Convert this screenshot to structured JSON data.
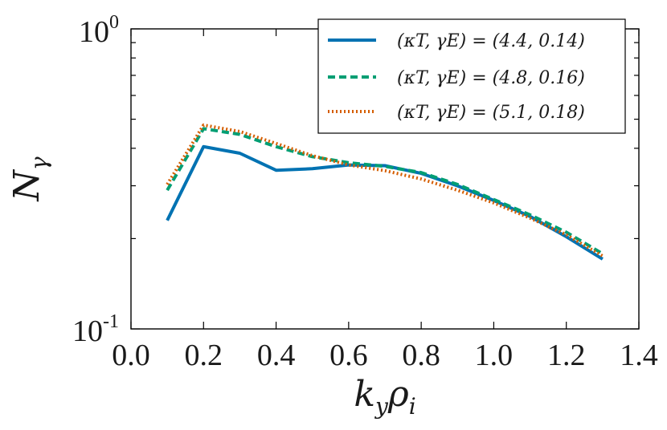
{
  "chart_data": {
    "type": "line",
    "xscale": "linear",
    "yscale": "log",
    "xlim": [
      0.0,
      1.4
    ],
    "ylim": [
      0.1,
      1.0
    ],
    "xlabel": "k_y ρ_i",
    "ylabel": "N_γ",
    "xticks": [
      "0.0",
      "0.2",
      "0.4",
      "0.6",
      "0.8",
      "1.0",
      "1.2",
      "1.4"
    ],
    "yticks": [
      {
        "base": "10",
        "exp": "-1",
        "value": 0.1
      },
      {
        "base": "10",
        "exp": "0",
        "value": 1.0
      }
    ],
    "legend_position": "top-right",
    "x": [
      0.1,
      0.2,
      0.3,
      0.4,
      0.5,
      0.6,
      0.7,
      0.8,
      0.9,
      1.0,
      1.1,
      1.2,
      1.3
    ],
    "series": [
      {
        "name": "(κ_T, γ_E) = (4.4, 0.14)",
        "label_text": "(κT, γE) = (4.4, 0.14)",
        "color": "#0072b2",
        "style": "solid",
        "values": [
          0.23,
          0.405,
          0.385,
          0.338,
          0.342,
          0.352,
          0.35,
          0.33,
          0.3,
          0.268,
          0.237,
          0.203,
          0.171
        ]
      },
      {
        "name": "(κ_T, γ_E) = (4.8, 0.16)",
        "label_text": "(κT, γE) = (4.8, 0.16)",
        "color": "#009e73",
        "style": "dashed",
        "values": [
          0.29,
          0.465,
          0.445,
          0.405,
          0.375,
          0.358,
          0.348,
          0.332,
          0.303,
          0.27,
          0.24,
          0.21,
          0.178
        ]
      },
      {
        "name": "(κ_T, γ_E) = (5.1, 0.18)",
        "label_text": "(κT, γE) = (5.1, 0.18)",
        "color": "#d55e00",
        "style": "dotted",
        "values": [
          0.303,
          0.478,
          0.455,
          0.415,
          0.378,
          0.352,
          0.337,
          0.316,
          0.29,
          0.263,
          0.234,
          0.206,
          0.175
        ]
      }
    ]
  }
}
